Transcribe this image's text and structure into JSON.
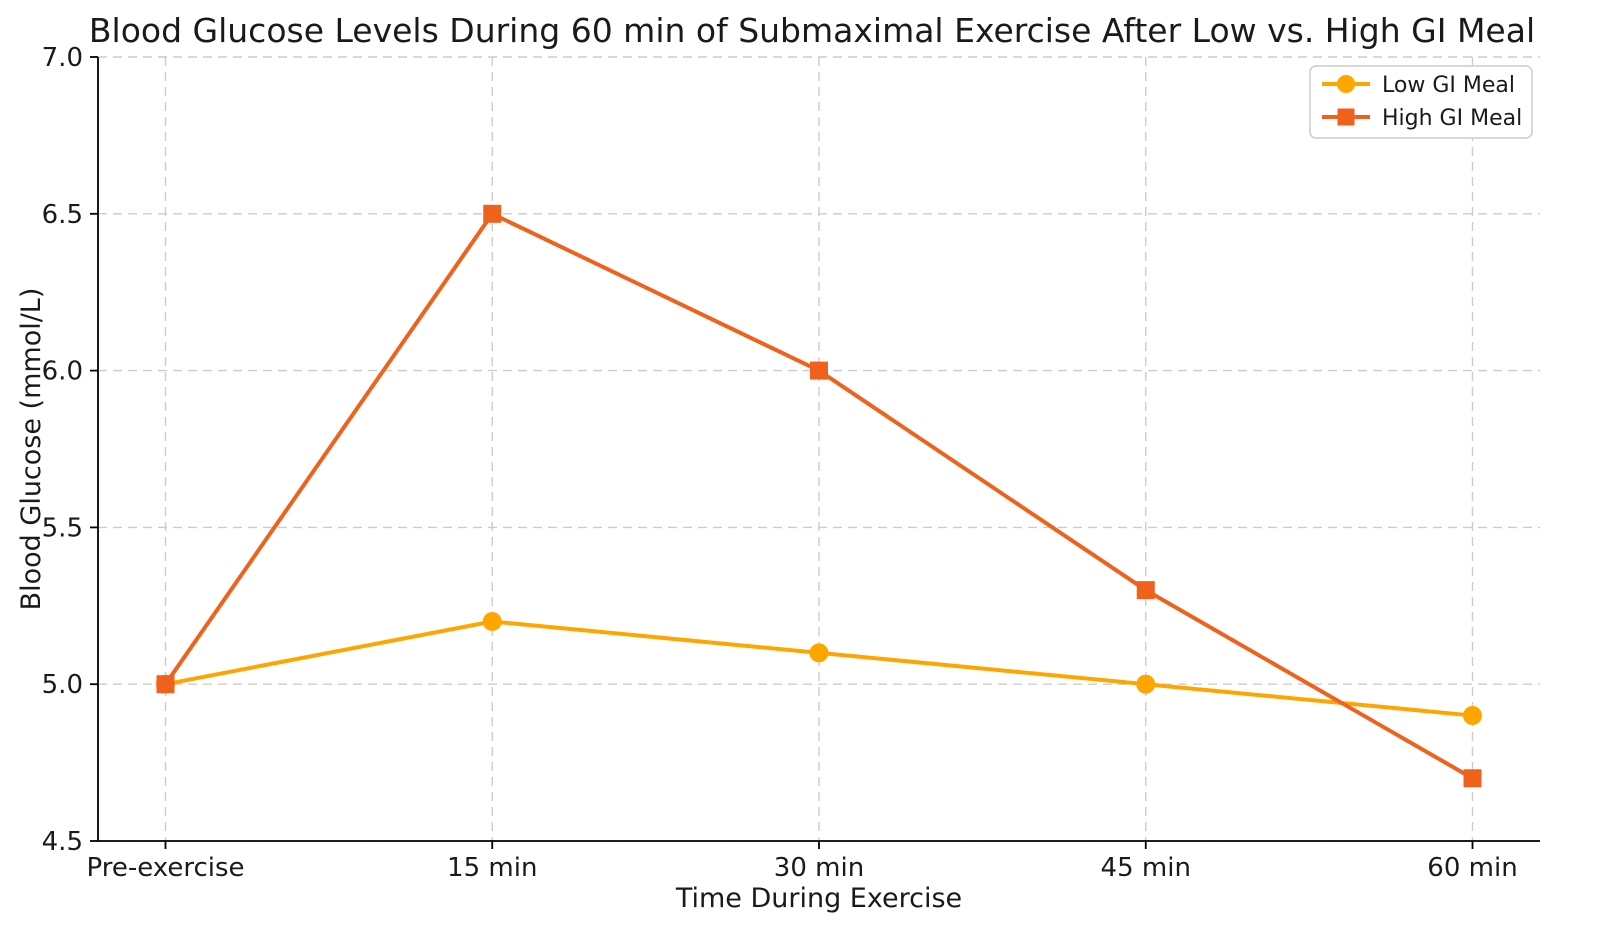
{
  "chart_data": {
    "type": "line",
    "title": "Blood Glucose Levels During 60 min of Submaximal Exercise After Low vs. High GI Meal",
    "xlabel": "Time During Exercise",
    "ylabel": "Blood Glucose (mmol/L)",
    "categories": [
      "Pre-exercise",
      "15 min",
      "30 min",
      "45 min",
      "60 min"
    ],
    "series": [
      {
        "name": "Low GI Meal",
        "color": "#FFA500",
        "marker": "circle",
        "values": [
          5.0,
          5.2,
          5.1,
          5.0,
          4.9
        ]
      },
      {
        "name": "High GI Meal",
        "color": "#F0621C",
        "marker": "square",
        "values": [
          5.0,
          6.5,
          6.0,
          5.3,
          4.7
        ]
      }
    ],
    "ylim": [
      4.5,
      7.0
    ],
    "yticks": [
      4.5,
      5.0,
      5.5,
      6.0,
      6.5,
      7.0
    ],
    "ytick_labels": [
      "4.5",
      "5.0",
      "5.5",
      "6.0",
      "6.5",
      "7.0"
    ],
    "grid": {
      "visible": true,
      "style": "dashed",
      "color": "#cccccc"
    },
    "legend": {
      "position": "top-right",
      "entries": [
        "Low GI Meal",
        "High GI Meal"
      ]
    },
    "colors": {
      "background": "#ffffff",
      "spine": "#000000",
      "text": "#1a1a1a"
    }
  }
}
